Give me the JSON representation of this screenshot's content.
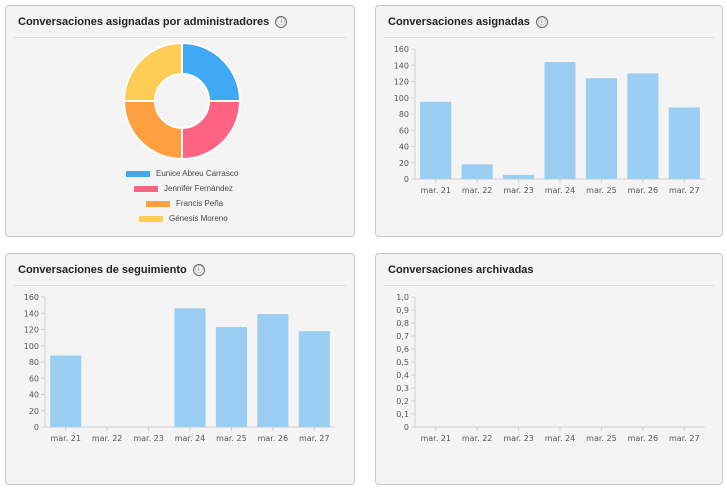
{
  "cards": {
    "admin": {
      "title": "Conversaciones asignadas por administradores",
      "info_icon": "ⓘ",
      "pie": {
        "legend": [
          {
            "label": "Eunice Abreu Carrasco",
            "color": "#3fa9f5"
          },
          {
            "label": "Jennifer Fernández",
            "color": "#ff6384"
          },
          {
            "label": "Francis Peña",
            "color": "#ff9f40"
          },
          {
            "label": "Génesis Moreno",
            "color": "#ffcd56"
          }
        ],
        "values": [
          25,
          25,
          25,
          25
        ]
      }
    },
    "assigned": {
      "title": "Conversaciones asignadas",
      "info_icon": "ⓘ"
    },
    "followup": {
      "title": "Conversaciones de seguimiento",
      "info_icon": "ⓘ"
    },
    "archived": {
      "title": "Conversaciones archivadas"
    }
  },
  "chart_data": [
    {
      "type": "pie",
      "categories": [
        "Eunice Abreu Carrasco",
        "Jennifer Fernández",
        "Francis Peña",
        "Génesis Moreno"
      ],
      "values": [
        25,
        25,
        25,
        25
      ],
      "title": "Conversaciones asignadas por administradores",
      "legend": "bottom"
    },
    {
      "type": "bar",
      "title": "Conversaciones asignadas",
      "categories": [
        "mar. 21",
        "mar. 22",
        "mar. 23",
        "mar. 24",
        "mar. 25",
        "mar. 26",
        "mar. 27"
      ],
      "values": [
        95,
        18,
        5,
        144,
        124,
        130,
        88
      ],
      "ylim": [
        0,
        160
      ],
      "yticks": [
        "0",
        "20",
        "40",
        "60",
        "80",
        "100",
        "120",
        "140",
        "160"
      ],
      "bar_color": "#99cdf2",
      "grid": false
    },
    {
      "type": "bar",
      "title": "Conversaciones de seguimiento",
      "categories": [
        "mar. 21",
        "mar. 22",
        "mar. 23",
        "mar. 24",
        "mar. 25",
        "mar. 26",
        "mar. 27"
      ],
      "values": [
        88,
        0,
        0,
        146,
        123,
        139,
        118
      ],
      "ylim": [
        0,
        160
      ],
      "yticks": [
        "0",
        "20",
        "40",
        "60",
        "80",
        "100",
        "120",
        "140",
        "160"
      ],
      "bar_color": "#99cdf2",
      "grid": false
    },
    {
      "type": "bar",
      "title": "Conversaciones archivadas",
      "categories": [
        "mar. 21",
        "mar. 22",
        "mar. 23",
        "mar. 24",
        "mar. 25",
        "mar. 26",
        "mar. 27"
      ],
      "values": [
        0,
        0,
        0,
        0,
        0,
        0,
        0
      ],
      "ylim": [
        0,
        1
      ],
      "yticks": [
        "0",
        "0,1",
        "0,2",
        "0,3",
        "0,4",
        "0,5",
        "0,6",
        "0,7",
        "0,8",
        "0,9",
        "1,0"
      ],
      "bar_color": "#99cdf2",
      "grid": false
    }
  ]
}
